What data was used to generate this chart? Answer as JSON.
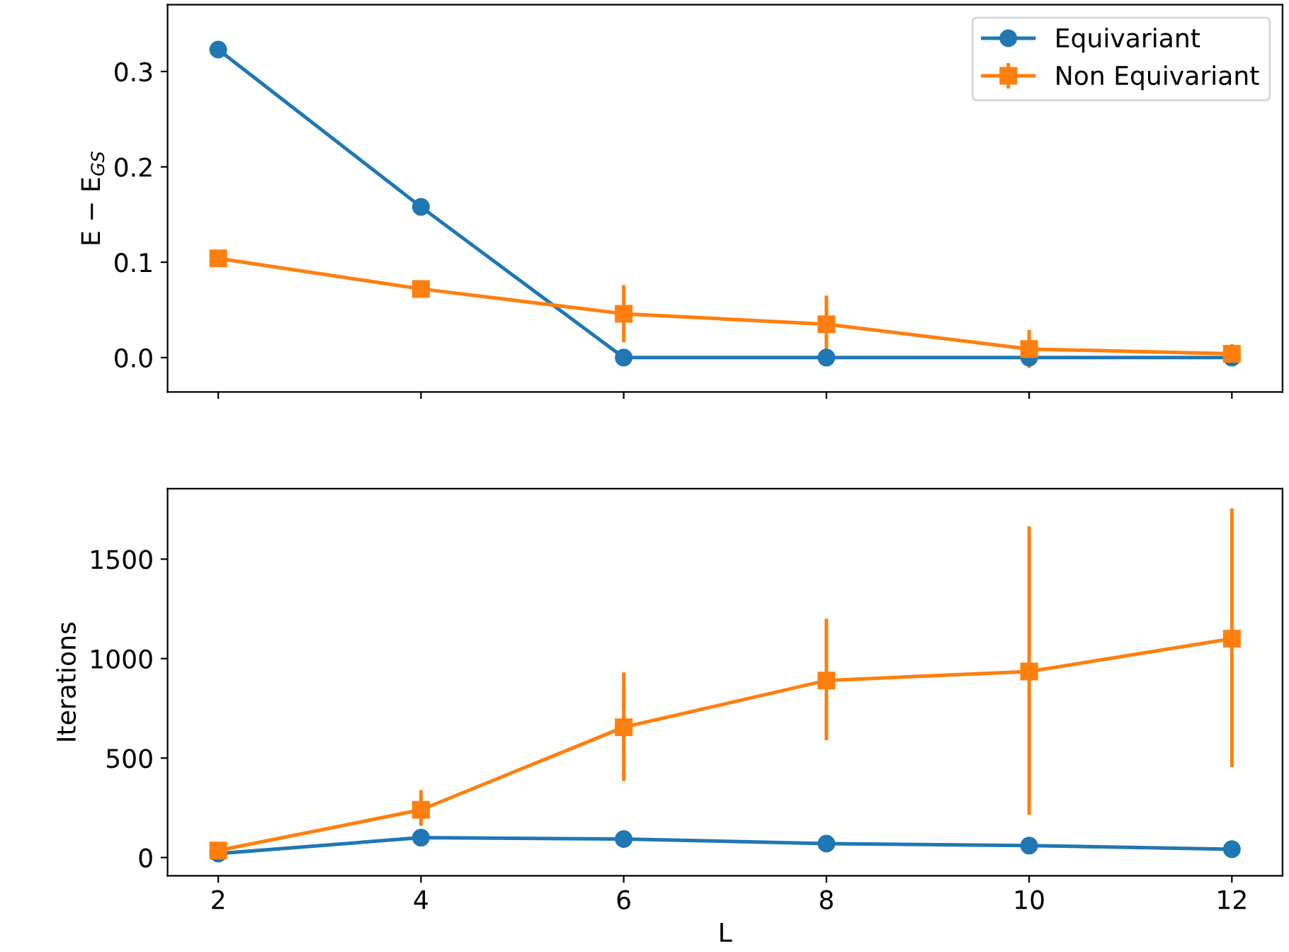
{
  "chart_data": [
    {
      "type": "line",
      "ylabel": "E − E$_{GS}$",
      "x": [
        2,
        4,
        6,
        8,
        10,
        12
      ],
      "xlim": [
        1.5,
        12.5
      ],
      "xticks": [
        2,
        4,
        6,
        8,
        10,
        12
      ],
      "ylim": [
        -0.036,
        0.37
      ],
      "yticks": [
        {
          "value": 0,
          "label": "0.0"
        },
        0.1,
        0.2,
        0.3
      ],
      "tick_labels": "y",
      "legend": "top right",
      "series": [
        {
          "name": "Equivariant",
          "color": "#1f77b4",
          "marker": "circle",
          "values": [
            0.323,
            0.158,
            0,
            0,
            0,
            0
          ]
        },
        {
          "name": "Non Equivariant",
          "color": "#ff7f0e",
          "marker": "square",
          "values": [
            0.104,
            0.072,
            0.046,
            0.035,
            0.009,
            0.004
          ],
          "errors": [
            null,
            null,
            0.03,
            0.03,
            0.02,
            0.01
          ]
        }
      ]
    },
    {
      "type": "line",
      "xlabel": "L",
      "ylabel": "Iterations",
      "x": [
        2,
        4,
        6,
        8,
        10,
        12
      ],
      "xlim": [
        1.5,
        12.5
      ],
      "xticks": [
        2,
        4,
        6,
        8,
        10,
        12
      ],
      "ylim": [
        -92,
        1854
      ],
      "yticks": [
        0,
        500,
        1000,
        1500
      ],
      "series": [
        {
          "color": "#1f77b4",
          "marker": "circle",
          "values": [
            20,
            100,
            93,
            70,
            60,
            42
          ]
        },
        {
          "color": "#ff7f0e",
          "marker": "square",
          "values": [
            35,
            240,
            655,
            890,
            935,
            1100
          ],
          "errors": [
            null,
            [
              160,
              340
            ],
            [
              385,
              930
            ],
            [
              590,
              1200
            ],
            [
              215,
              1665
            ],
            [
              455,
              1755
            ]
          ]
        }
      ]
    }
  ]
}
